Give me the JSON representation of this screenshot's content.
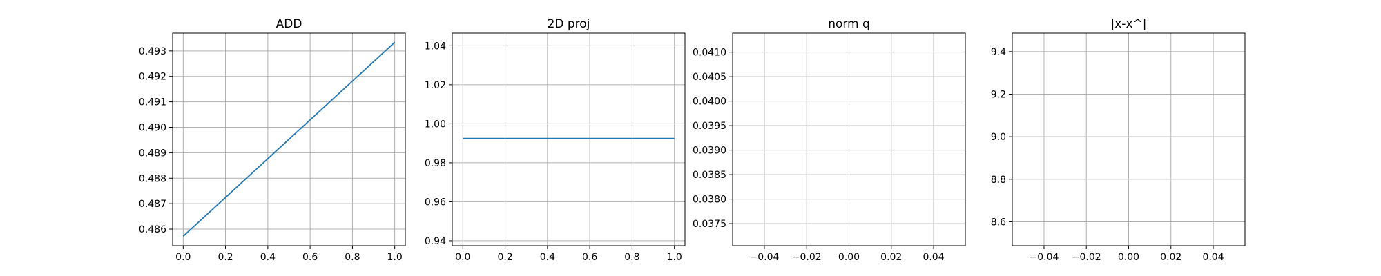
{
  "chart_data": [
    {
      "type": "line",
      "title": "ADD",
      "xlabel": "",
      "ylabel": "",
      "xlim": [
        -0.05,
        1.05
      ],
      "ylim": [
        0.48535,
        0.4937
      ],
      "xticks": [
        0.0,
        0.2,
        0.4,
        0.6,
        0.8,
        1.0
      ],
      "xtick_labels": [
        "0.0",
        "0.2",
        "0.4",
        "0.6",
        "0.8",
        "1.0"
      ],
      "yticks": [
        0.486,
        0.487,
        0.488,
        0.489,
        0.49,
        0.491,
        0.492,
        0.493
      ],
      "ytick_labels": [
        "0.486",
        "0.487",
        "0.488",
        "0.489",
        "0.490",
        "0.491",
        "0.492",
        "0.493"
      ],
      "grid": true,
      "series": [
        {
          "color": "#1f77b4",
          "x": [
            0,
            1
          ],
          "y": [
            0.48572,
            0.49334
          ]
        }
      ]
    },
    {
      "type": "line",
      "title": "2D proj",
      "xlabel": "",
      "ylabel": "",
      "xlim": [
        -0.05,
        1.05
      ],
      "ylim": [
        0.9375,
        1.0465
      ],
      "xticks": [
        0.0,
        0.2,
        0.4,
        0.6,
        0.8,
        1.0
      ],
      "xtick_labels": [
        "0.0",
        "0.2",
        "0.4",
        "0.6",
        "0.8",
        "1.0"
      ],
      "yticks": [
        0.94,
        0.96,
        0.98,
        1.0,
        1.02,
        1.04
      ],
      "ytick_labels": [
        "0.94",
        "0.96",
        "0.98",
        "1.00",
        "1.02",
        "1.04"
      ],
      "grid": true,
      "series": [
        {
          "color": "#1f77b4",
          "x": [
            0,
            1
          ],
          "y": [
            0.9925,
            0.9925
          ]
        }
      ]
    },
    {
      "type": "line",
      "title": "norm q",
      "xlabel": "",
      "ylabel": "",
      "xlim": [
        -0.055,
        0.055
      ],
      "ylim": [
        0.03705,
        0.04139
      ],
      "xticks": [
        -0.04,
        -0.02,
        0.0,
        0.02,
        0.04
      ],
      "xtick_labels": [
        "−0.04",
        "−0.02",
        "0.00",
        "0.02",
        "0.04"
      ],
      "yticks": [
        0.0375,
        0.038,
        0.0385,
        0.039,
        0.0395,
        0.04,
        0.0405,
        0.041
      ],
      "ytick_labels": [
        "0.0375",
        "0.0380",
        "0.0385",
        "0.0390",
        "0.0395",
        "0.0400",
        "0.0405",
        "0.0410"
      ],
      "grid": true,
      "series": []
    },
    {
      "type": "line",
      "title": "|x-x^|",
      "xlabel": "",
      "ylabel": "",
      "xlim": [
        -0.055,
        0.055
      ],
      "ylim": [
        8.488,
        9.487
      ],
      "xticks": [
        -0.04,
        -0.02,
        0.0,
        0.02,
        0.04
      ],
      "xtick_labels": [
        "−0.04",
        "−0.02",
        "0.00",
        "0.02",
        "0.04"
      ],
      "yticks": [
        8.6,
        8.8,
        9.0,
        9.2,
        9.4
      ],
      "ytick_labels": [
        "8.6",
        "8.8",
        "9.0",
        "9.2",
        "9.4"
      ],
      "grid": true,
      "series": []
    }
  ]
}
